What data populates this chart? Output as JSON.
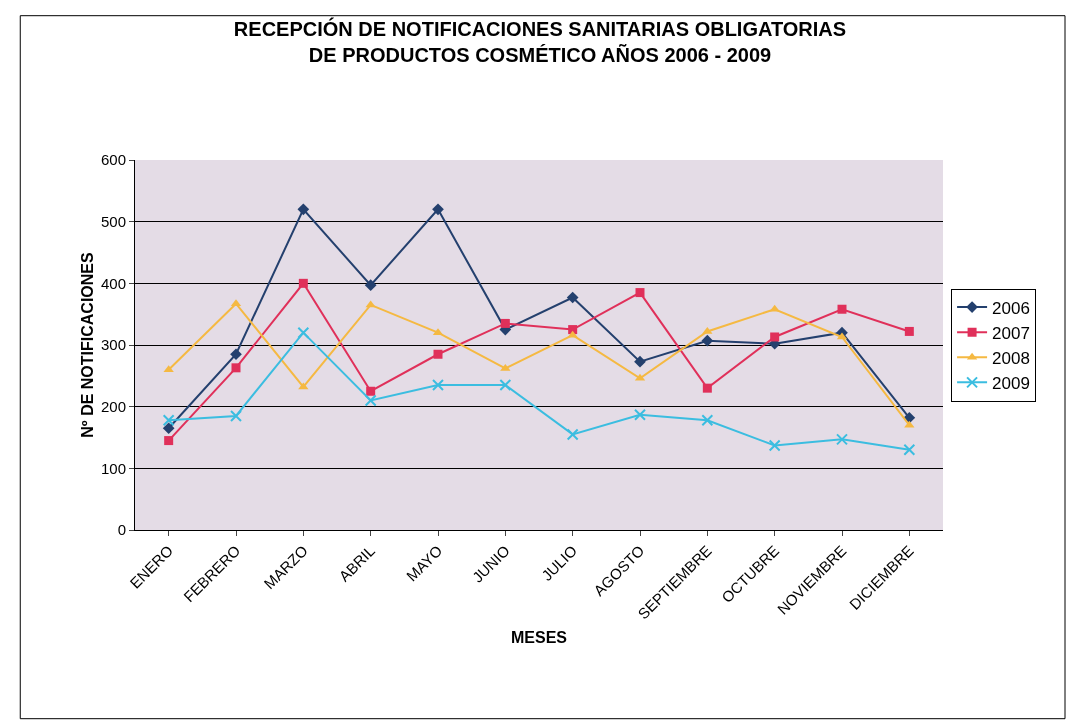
{
  "chart_data": {
    "type": "line",
    "title": "RECEPCIÓN DE NOTIFICACIONES SANITARIAS OBLIGATORIAS\nDE PRODUCTOS COSMÉTICO AÑOS 2006 - 2009",
    "xlabel": "MESES",
    "ylabel": "Nº DE NOTIFICACIONES",
    "categories": [
      "ENERO",
      "FEBRERO",
      "MARZO",
      "ABRIL",
      "MAYO",
      "JUNIO",
      "JULIO",
      "AGOSTO",
      "SEPTIEMBRE",
      "OCTUBRE",
      "NOVIEMBRE",
      "DICIEMBRE"
    ],
    "series": [
      {
        "name": "2006",
        "color": "#24406e",
        "marker": "diamond",
        "values": [
          165,
          285,
          520,
          397,
          520,
          325,
          377,
          273,
          307,
          302,
          320,
          182
        ]
      },
      {
        "name": "2007",
        "color": "#e0305a",
        "marker": "square",
        "values": [
          145,
          263,
          400,
          225,
          285,
          335,
          325,
          385,
          230,
          313,
          358,
          322
        ]
      },
      {
        "name": "2008",
        "color": "#f5b942",
        "marker": "triangle",
        "values": [
          260,
          367,
          232,
          365,
          320,
          262,
          316,
          246,
          322,
          358,
          313,
          170
        ]
      },
      {
        "name": "2009",
        "color": "#3bbde0",
        "marker": "cross",
        "values": [
          178,
          185,
          320,
          210,
          235,
          235,
          155,
          187,
          178,
          137,
          147,
          130
        ]
      }
    ],
    "ylim": [
      0,
      600
    ],
    "yticks": [
      0,
      100,
      200,
      300,
      400,
      500,
      600
    ],
    "grid": "y",
    "legend": "right"
  }
}
